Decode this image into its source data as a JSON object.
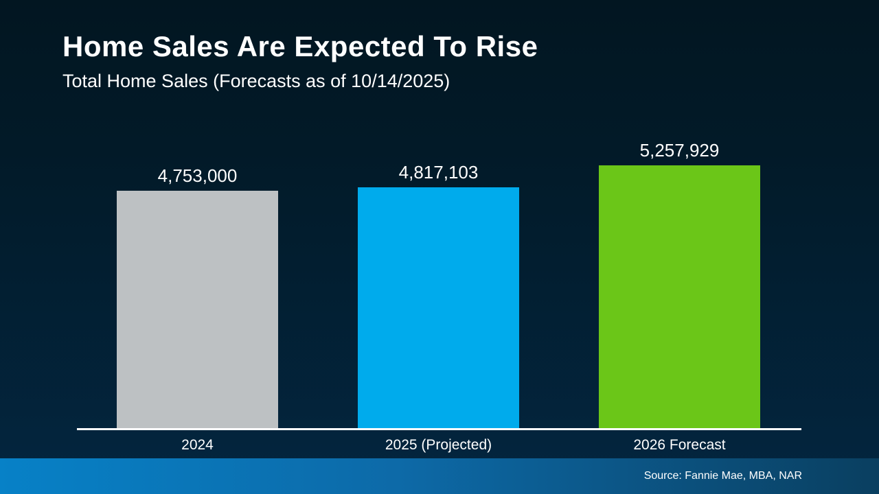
{
  "header": {
    "title": "Home Sales Are Expected To Rise",
    "subtitle": "Total Home Sales (Forecasts as of 10/14/2025)"
  },
  "chart_data": {
    "type": "bar",
    "title": "Home Sales Are Expected To Rise",
    "subtitle": "Total Home Sales (Forecasts as of 10/14/2025)",
    "categories": [
      "2024",
      "2025 (Projected)",
      "2026 Forecast"
    ],
    "values": [
      4753000,
      4817103,
      5257929
    ],
    "value_labels": [
      "4,753,000",
      "4,817,103",
      "5,257,929"
    ],
    "bar_colors": [
      "#bdc1c3",
      "#00abec",
      "#6bc618"
    ],
    "ylim": [
      0,
      5257929
    ],
    "grid": false,
    "legend": false,
    "axis_color": "#ffffff"
  },
  "footer": {
    "source": "Source: Fannie Mae, MBA, NAR"
  },
  "colors": {
    "background_top": "#021621",
    "background_bottom": "#04293e",
    "bar_gray": "#bdc1c3",
    "bar_blue": "#00abec",
    "bar_green": "#6bc618",
    "footer_gradient_left": "#0781c7",
    "footer_gradient_right": "#0a3f60",
    "text": "#ffffff"
  }
}
